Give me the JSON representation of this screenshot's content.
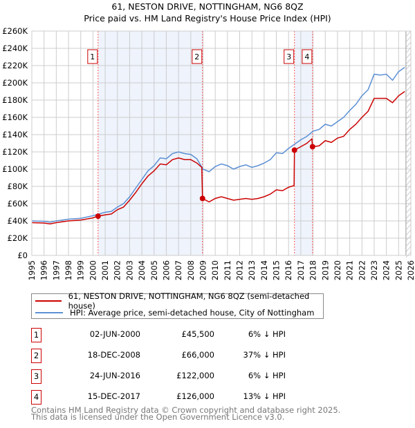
{
  "chart_data": {
    "type": "line",
    "title": "61, NESTON DRIVE, NOTTINGHAM, NG6 8QZ",
    "subtitle": "Price paid vs. HM Land Registry's House Price Index (HPI)",
    "xlim": [
      1995,
      2026
    ],
    "ylim": [
      0,
      260000
    ],
    "y_ticks": [
      "£0",
      "£20K",
      "£40K",
      "£60K",
      "£80K",
      "£100K",
      "£120K",
      "£140K",
      "£160K",
      "£180K",
      "£200K",
      "£220K",
      "£240K",
      "£260K"
    ],
    "x_ticks": [
      "1995",
      "1996",
      "1997",
      "1998",
      "1999",
      "2000",
      "2001",
      "2002",
      "2003",
      "2004",
      "2005",
      "2006",
      "2007",
      "2008",
      "2009",
      "2010",
      "2011",
      "2012",
      "2013",
      "2014",
      "2015",
      "2016",
      "2017",
      "2018",
      "2019",
      "2020",
      "2021",
      "2022",
      "2023",
      "2024",
      "2025",
      "2026"
    ],
    "grid": true,
    "series": [
      {
        "name": "61, NESTON DRIVE, NOTTINGHAM, NG6 8QZ (semi-detached house)",
        "color": "#cc0000",
        "x": [
          1995,
          1996,
          1996.5,
          1997,
          1998,
          1999,
          2000,
          2000.42,
          2001,
          2001.5,
          2002,
          2002.5,
          2003,
          2003.5,
          2004,
          2004.5,
          2005,
          2005.5,
          2006,
          2006.5,
          2007,
          2007.5,
          2008,
          2008.5,
          2008.9,
          2008.96,
          2009.5,
          2010,
          2010.5,
          2011,
          2011.5,
          2012,
          2012.5,
          2013,
          2013.5,
          2014,
          2014.5,
          2015,
          2015.5,
          2016,
          2016.45,
          2016.48,
          2017,
          2017.5,
          2017.9,
          2017.96,
          2018.5,
          2019,
          2019.5,
          2020,
          2020.5,
          2021,
          2021.5,
          2022,
          2022.5,
          2023,
          2023.5,
          2024,
          2024.5,
          2025,
          2025.5
        ],
        "y": [
          38000,
          37500,
          36500,
          38000,
          40000,
          41000,
          43500,
          45500,
          47000,
          48000,
          53000,
          56000,
          64000,
          73000,
          83000,
          92000,
          98000,
          106000,
          105000,
          111000,
          113000,
          111000,
          111000,
          107000,
          102000,
          66000,
          62000,
          66000,
          68000,
          66000,
          64000,
          65000,
          66000,
          65000,
          66000,
          68000,
          71000,
          76000,
          75000,
          79000,
          81000,
          122000,
          126000,
          130000,
          135000,
          126000,
          127000,
          133000,
          131000,
          136000,
          138000,
          146000,
          152000,
          160000,
          167000,
          182000,
          182000,
          182000,
          177000,
          185000,
          190000
        ]
      },
      {
        "name": "HPI: Average price, semi-detached house, City of Nottingham",
        "color": "#5b8fd4",
        "x": [
          1995,
          1996,
          1996.5,
          1997,
          1998,
          1999,
          2000,
          2000.5,
          2001,
          2001.5,
          2002,
          2002.5,
          2003,
          2003.5,
          2004,
          2004.5,
          2005,
          2005.5,
          2006,
          2006.5,
          2007,
          2007.5,
          2008,
          2008.5,
          2009,
          2009.5,
          2010,
          2010.5,
          2011,
          2011.5,
          2012,
          2012.5,
          2013,
          2013.5,
          2014,
          2014.5,
          2015,
          2015.5,
          2016,
          2016.5,
          2017,
          2017.5,
          2018,
          2018.5,
          2019,
          2019.5,
          2020,
          2020.5,
          2021,
          2021.5,
          2022,
          2022.5,
          2023,
          2023.5,
          2024,
          2024.5,
          2025,
          2025.5
        ],
        "y": [
          40000,
          39500,
          38500,
          40000,
          42000,
          43000,
          46000,
          48000,
          50000,
          51000,
          56000,
          60000,
          68000,
          78000,
          88000,
          98000,
          104000,
          113000,
          112000,
          118000,
          120000,
          118000,
          117000,
          112000,
          100000,
          97000,
          103000,
          106000,
          104000,
          100000,
          103000,
          105000,
          102000,
          104000,
          107000,
          111000,
          119000,
          118000,
          124000,
          129000,
          134000,
          138000,
          144000,
          146000,
          152000,
          150000,
          155000,
          160000,
          168000,
          175000,
          185000,
          192000,
          210000,
          209000,
          210000,
          203000,
          213000,
          218000
        ]
      }
    ],
    "sales": [
      {
        "n": "1",
        "x": 2000.42,
        "y": 45500
      },
      {
        "n": "2",
        "x": 2008.96,
        "y": 66000
      },
      {
        "n": "3",
        "x": 2016.48,
        "y": 122000
      },
      {
        "n": "4",
        "x": 2017.96,
        "y": 126000
      }
    ],
    "forecast_from": 2025.6
  },
  "legend": {
    "red": "61, NESTON DRIVE, NOTTINGHAM, NG6 8QZ (semi-detached house)",
    "blue": "HPI: Average price, semi-detached house, City of Nottingham"
  },
  "table": [
    {
      "n": "1",
      "date": "02-JUN-2000",
      "price": "£45,500",
      "hpi": "6% ↓ HPI"
    },
    {
      "n": "2",
      "date": "18-DEC-2008",
      "price": "£66,000",
      "hpi": "37% ↓ HPI"
    },
    {
      "n": "3",
      "date": "24-JUN-2016",
      "price": "£122,000",
      "hpi": "6% ↓ HPI"
    },
    {
      "n": "4",
      "date": "15-DEC-2017",
      "price": "£126,000",
      "hpi": "13% ↓ HPI"
    }
  ],
  "footer": {
    "line1": "Contains HM Land Registry data © Crown copyright and database right 2025.",
    "line2": "This data is licensed under the Open Government Licence v3.0."
  }
}
